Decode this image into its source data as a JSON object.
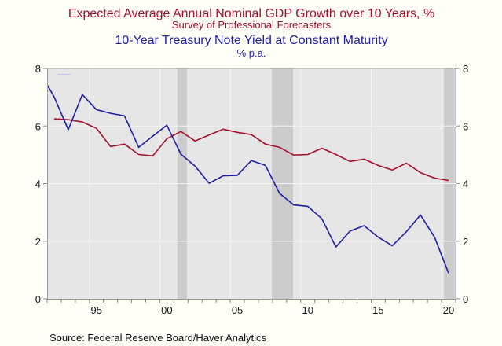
{
  "chart_data": {
    "type": "line",
    "titles": [
      {
        "text": "Expected Average Annual Nominal GDP Growth over 10 Years, %",
        "color": "#A50F2B"
      },
      {
        "text": "Survey of Professional Forecasters",
        "color": "#A50F2B"
      },
      {
        "text": "10-Year Treasury Note Yield at Constant Maturity",
        "color": "#1E1EA6"
      },
      {
        "text": "% p.a.",
        "color": "#1E1EA6"
      }
    ],
    "xlabel": "",
    "ylabel": "",
    "xlim": [
      1992,
      2021
    ],
    "ylim": [
      0,
      8
    ],
    "y_ticks": [
      0,
      2,
      4,
      6,
      8
    ],
    "y_tick_labels": [
      "0",
      "2",
      "4",
      "6",
      "8"
    ],
    "y_axis_sides": [
      "left",
      "right"
    ],
    "x_tick_labels": [
      {
        "year": 1995,
        "label": "95"
      },
      {
        "year": 2000,
        "label": "00"
      },
      {
        "year": 2005,
        "label": "05"
      },
      {
        "year": 2010,
        "label": "10"
      },
      {
        "year": 2015,
        "label": "15"
      },
      {
        "year": 2020,
        "label": "20"
      }
    ],
    "grid": true,
    "shaded_periods": [
      {
        "label": "recession",
        "start": 2001.25,
        "end": 2001.92
      },
      {
        "label": "recession",
        "start": 2007.95,
        "end": 2009.46
      },
      {
        "label": "recession",
        "start": 2020.17,
        "end": 2021.0
      }
    ],
    "series": [
      {
        "name": "Expected Average Annual Nominal GDP Growth over 10 Years, %",
        "color": "#A50F2B",
        "x": [
          1992,
          1993,
          1994,
          1995,
          1996,
          1997,
          1998,
          1999,
          2000,
          2001,
          2002,
          2003,
          2004,
          2005,
          2006,
          2007,
          2008,
          2009,
          2010,
          2011,
          2012,
          2013,
          2014,
          2015,
          2016,
          2017,
          2018,
          2019,
          2020
        ],
        "values": [
          6.25,
          6.22,
          6.14,
          5.92,
          5.29,
          5.37,
          5.01,
          4.96,
          5.56,
          5.81,
          5.48,
          5.69,
          5.89,
          5.78,
          5.7,
          5.37,
          5.26,
          4.99,
          5.01,
          5.23,
          5.01,
          4.77,
          4.85,
          4.63,
          4.47,
          4.71,
          4.38,
          4.19,
          4.11
        ]
      },
      {
        "name": "10-Year Treasury Note Yield at Constant Maturity, % p.a.",
        "color": "#1E1EA6",
        "x": [
          1991,
          1992,
          1993,
          1994,
          1995,
          1996,
          1997,
          1998,
          1999,
          2000,
          2001,
          2002,
          2003,
          2004,
          2005,
          2006,
          2007,
          2008,
          2009,
          2010,
          2011,
          2012,
          2013,
          2014,
          2015,
          2016,
          2017,
          2018,
          2019,
          2020
        ],
        "values": [
          7.86,
          7.01,
          5.87,
          7.09,
          6.57,
          6.44,
          6.35,
          5.26,
          5.65,
          6.03,
          5.02,
          4.61,
          4.01,
          4.27,
          4.29,
          4.8,
          4.63,
          3.66,
          3.26,
          3.21,
          2.78,
          1.8,
          2.35,
          2.54,
          2.14,
          1.84,
          2.33,
          2.91,
          2.14,
          0.89
        ]
      }
    ],
    "legend": "none",
    "source": "Source:  Federal Reserve Board/Haver Analytics"
  }
}
